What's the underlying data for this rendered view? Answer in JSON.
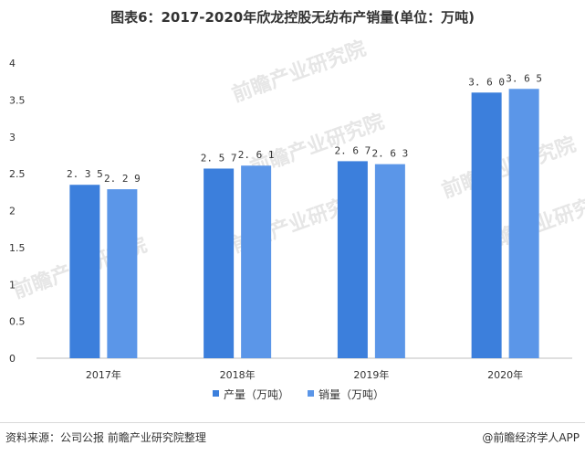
{
  "title": "图表6：2017-2020年欣龙控股无纺布产销量(单位：万吨)",
  "source": "资料来源：公司公报 前瞻产业研究院整理",
  "brand": "@前瞻经济学人APP",
  "watermark_text": "前瞻产业研究院",
  "chart_data": {
    "type": "bar",
    "categories": [
      "2017年",
      "2018年",
      "2019年",
      "2020年"
    ],
    "series": [
      {
        "name": "产量（万吨）",
        "values": [
          2.35,
          2.57,
          2.67,
          3.6
        ],
        "labels": [
          "2.35",
          "2.57",
          "2.67",
          "3.60"
        ],
        "color": "#3c7fdc"
      },
      {
        "name": "销量（万吨）",
        "values": [
          2.29,
          2.61,
          2.63,
          3.65
        ],
        "labels": [
          "2.29",
          "2.61",
          "2.63",
          "3.65"
        ],
        "color": "#5b96e8"
      }
    ],
    "ylim": [
      0,
      4
    ],
    "yticks": [
      "0",
      "0.5",
      "1",
      "1.5",
      "2",
      "2.5",
      "3",
      "3.5",
      "4"
    ],
    "ytick_values": [
      0,
      0.5,
      1,
      1.5,
      2,
      2.5,
      3,
      3.5,
      4
    ],
    "xlabel": "",
    "ylabel": "",
    "grid": false,
    "legend_position": "bottom"
  }
}
